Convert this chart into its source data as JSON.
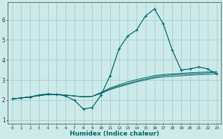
{
  "xlabel": "Humidex (Indice chaleur)",
  "bg_color": "#cceaea",
  "grid_color": "#aacccc",
  "line_color": "#006666",
  "xlim": [
    -0.5,
    23.5
  ],
  "ylim": [
    0.8,
    6.9
  ],
  "yticks": [
    1,
    2,
    3,
    4,
    5,
    6
  ],
  "xticks": [
    0,
    1,
    2,
    3,
    4,
    5,
    6,
    7,
    8,
    9,
    10,
    11,
    12,
    13,
    14,
    15,
    16,
    17,
    18,
    19,
    20,
    21,
    22,
    23
  ],
  "series1_x": [
    0,
    1,
    2,
    3,
    4,
    5,
    6,
    7,
    8,
    9,
    10,
    11,
    12,
    13,
    14,
    15,
    16,
    17,
    18,
    19,
    20,
    21,
    22,
    23
  ],
  "series1_y": [
    2.05,
    2.1,
    2.15,
    2.25,
    2.3,
    2.28,
    2.2,
    1.98,
    1.55,
    1.62,
    2.25,
    3.2,
    4.55,
    5.2,
    5.5,
    6.2,
    6.55,
    5.8,
    4.5,
    3.5,
    3.55,
    3.65,
    3.55,
    3.3
  ],
  "series2_x": [
    0,
    1,
    2,
    3,
    4,
    5,
    6,
    7,
    8,
    9,
    10,
    11,
    12,
    13,
    14,
    15,
    16,
    17,
    18,
    19,
    20,
    21,
    22,
    23
  ],
  "series2_y": [
    2.05,
    2.1,
    2.15,
    2.22,
    2.27,
    2.28,
    2.24,
    2.2,
    2.16,
    2.18,
    2.35,
    2.55,
    2.7,
    2.82,
    2.95,
    3.05,
    3.15,
    3.22,
    3.25,
    3.28,
    3.3,
    3.33,
    3.35,
    3.38
  ],
  "series3_x": [
    0,
    1,
    2,
    3,
    4,
    5,
    6,
    7,
    8,
    9,
    10,
    11,
    12,
    13,
    14,
    15,
    16,
    17,
    18,
    19,
    20,
    21,
    22,
    23
  ],
  "series3_y": [
    2.05,
    2.1,
    2.15,
    2.22,
    2.27,
    2.28,
    2.24,
    2.2,
    2.16,
    2.18,
    2.38,
    2.6,
    2.75,
    2.9,
    3.02,
    3.12,
    3.22,
    3.27,
    3.3,
    3.33,
    3.36,
    3.38,
    3.4,
    3.42
  ],
  "series4_x": [
    0,
    1,
    2,
    3,
    4,
    5,
    6,
    7,
    8,
    9,
    10,
    11,
    12,
    13,
    14,
    15,
    16,
    17,
    18,
    19,
    20,
    21,
    22,
    23
  ],
  "series4_y": [
    2.05,
    2.1,
    2.15,
    2.22,
    2.27,
    2.28,
    2.24,
    2.2,
    2.16,
    2.18,
    2.32,
    2.52,
    2.65,
    2.78,
    2.9,
    3.0,
    3.1,
    3.15,
    3.18,
    3.21,
    3.24,
    3.26,
    3.28,
    3.3
  ]
}
